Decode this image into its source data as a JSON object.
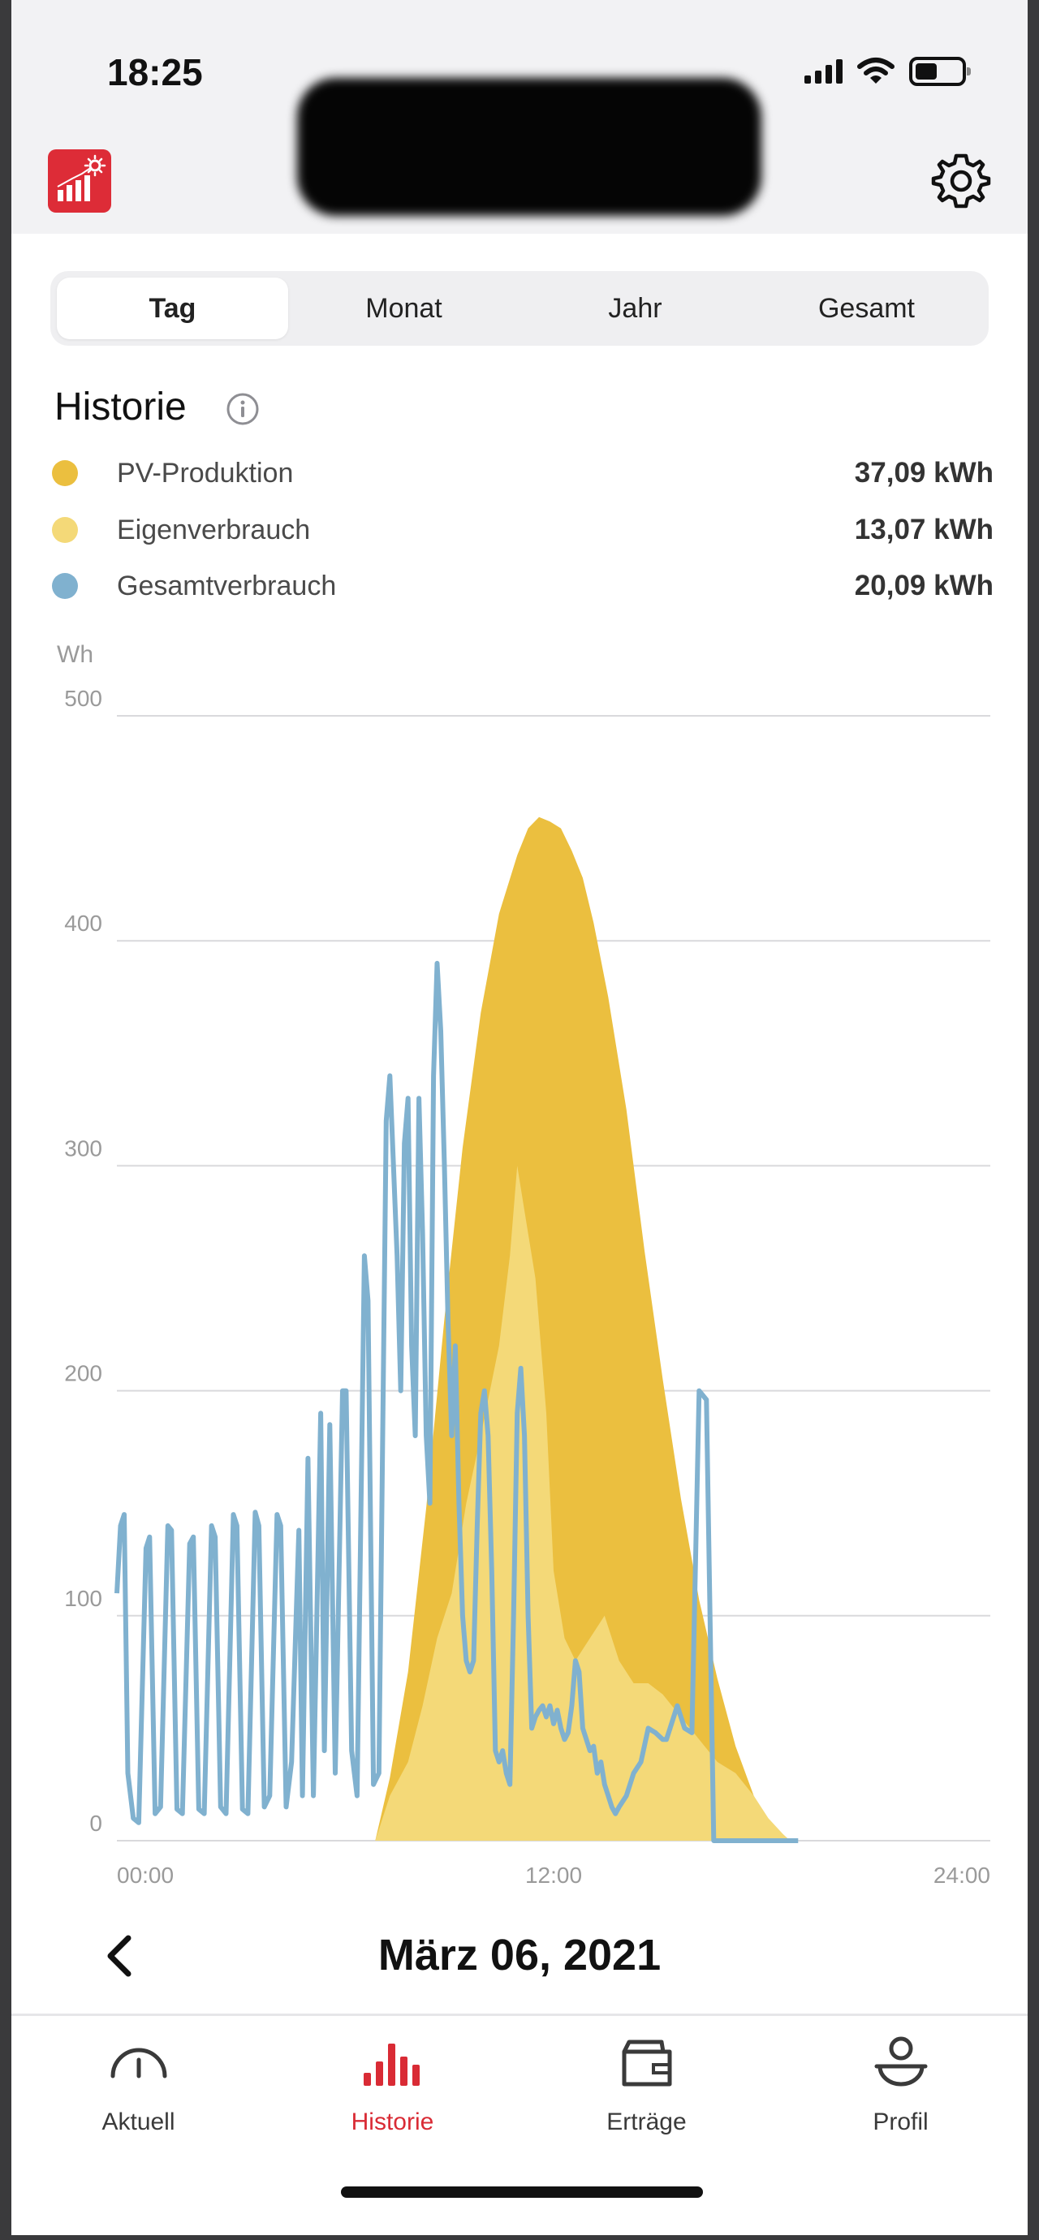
{
  "status_bar": {
    "time": "18:25",
    "icons": [
      "cellular-signal-icon",
      "wifi-icon",
      "battery-icon"
    ],
    "battery_level": 0.45
  },
  "header": {
    "logo_icon": "solar-chart-icon",
    "settings_icon": "gear-icon",
    "brand_color": "#dd2c37"
  },
  "period_tabs": [
    {
      "label": "Tag",
      "selected": true
    },
    {
      "label": "Monat",
      "selected": false
    },
    {
      "label": "Jahr",
      "selected": false
    },
    {
      "label": "Gesamt",
      "selected": false
    }
  ],
  "history": {
    "title": "Historie",
    "info_icon": "info-icon"
  },
  "legend": [
    {
      "label": "PV-Produktion",
      "value": "37,09 kWh",
      "color": "#ebbf3f"
    },
    {
      "label": "Eigenverbrauch",
      "value": "13,07 kWh",
      "color": "#f4d978"
    },
    {
      "label": "Gesamtverbrauch",
      "value": "20,09 kWh",
      "color": "#80b1cf"
    }
  ],
  "chart_data": {
    "type": "area",
    "ylabel": "Wh",
    "ylim": [
      0,
      500
    ],
    "yticks": [
      "0",
      "100",
      "200",
      "300",
      "400",
      "500"
    ],
    "xlim": [
      0,
      24
    ],
    "xticks": [
      "00:00",
      "12:00",
      "24:00"
    ],
    "grid": true,
    "series": [
      {
        "name": "PV-Produktion",
        "type": "area",
        "color": "#ebbf3f",
        "x": [
          0,
          7.1,
          7.5,
          8.0,
          8.5,
          9.0,
          9.5,
          10.0,
          10.5,
          11.0,
          11.3,
          11.6,
          11.9,
          12.2,
          12.5,
          12.8,
          13.1,
          13.5,
          14.0,
          14.5,
          15.0,
          15.5,
          16.0,
          16.5,
          17.0,
          17.5,
          17.9,
          18.3,
          18.5
        ],
        "values": [
          0,
          0,
          28,
          75,
          148,
          232,
          308,
          368,
          412,
          438,
          450,
          455,
          453,
          450,
          440,
          428,
          408,
          375,
          325,
          262,
          205,
          152,
          107,
          72,
          42,
          20,
          8,
          2,
          0
        ]
      },
      {
        "name": "Eigenverbrauch",
        "type": "area",
        "color": "#f4d978",
        "x": [
          0,
          7.1,
          7.5,
          8.0,
          8.4,
          8.8,
          9.2,
          9.6,
          10.0,
          10.5,
          10.8,
          11.0,
          11.2,
          11.5,
          11.8,
          12.0,
          12.3,
          12.6,
          13.0,
          13.4,
          13.8,
          14.2,
          14.6,
          15.0,
          15.5,
          16.0,
          16.5,
          17.0,
          17.5,
          17.9,
          18.3,
          18.5
        ],
        "values": [
          0,
          0,
          20,
          35,
          60,
          90,
          110,
          150,
          180,
          220,
          260,
          300,
          280,
          250,
          190,
          120,
          90,
          80,
          90,
          100,
          80,
          70,
          70,
          65,
          55,
          45,
          35,
          30,
          20,
          10,
          3,
          0
        ]
      },
      {
        "name": "Gesamtverbrauch",
        "type": "line",
        "color": "#80b1cf",
        "x": [
          0.0,
          0.1,
          0.2,
          0.3,
          0.45,
          0.6,
          0.8,
          0.9,
          1.05,
          1.2,
          1.4,
          1.5,
          1.65,
          1.8,
          2.0,
          2.1,
          2.25,
          2.4,
          2.6,
          2.7,
          2.85,
          3.0,
          3.2,
          3.3,
          3.45,
          3.6,
          3.8,
          3.9,
          4.05,
          4.2,
          4.4,
          4.5,
          4.65,
          4.8,
          5.0,
          5.1,
          5.25,
          5.4,
          5.6,
          5.7,
          5.85,
          6.0,
          6.2,
          6.3,
          6.45,
          6.6,
          6.8,
          6.9,
          7.05,
          7.2,
          7.4,
          7.5,
          7.7,
          7.8,
          7.9,
          8.0,
          8.1,
          8.2,
          8.3,
          8.4,
          8.5,
          8.6,
          8.7,
          8.8,
          8.9,
          9.0,
          9.1,
          9.2,
          9.3,
          9.4,
          9.5,
          9.6,
          9.7,
          9.8,
          9.9,
          10.0,
          10.1,
          10.2,
          10.3,
          10.4,
          10.5,
          10.6,
          10.7,
          10.8,
          10.9,
          11.0,
          11.1,
          11.2,
          11.3,
          11.4,
          11.5,
          11.6,
          11.7,
          11.8,
          11.9,
          12.0,
          12.1,
          12.2,
          12.3,
          12.4,
          12.5,
          12.6,
          12.7,
          12.8,
          12.9,
          13.0,
          13.1,
          13.2,
          13.3,
          13.4,
          13.5,
          13.6,
          13.7,
          13.8,
          14.0,
          14.2,
          14.4,
          14.6,
          14.8,
          15.0,
          15.1,
          15.2,
          15.4,
          15.6,
          15.8,
          16.0,
          16.2,
          16.4,
          16.6,
          16.8,
          17.0,
          17.2,
          17.4,
          17.5,
          17.6,
          17.8,
          18.0,
          18.2,
          18.3,
          18.4,
          18.5,
          18.6,
          18.65,
          18.7,
          18.72
        ],
        "values": [
          110,
          140,
          145,
          30,
          10,
          8,
          130,
          135,
          12,
          15,
          140,
          138,
          14,
          12,
          132,
          135,
          14,
          12,
          140,
          135,
          15,
          12,
          145,
          140,
          14,
          12,
          146,
          140,
          15,
          20,
          145,
          140,
          15,
          35,
          138,
          20,
          170,
          20,
          190,
          40,
          185,
          30,
          200,
          200,
          40,
          20,
          260,
          240,
          25,
          30,
          320,
          340,
          260,
          200,
          310,
          330,
          220,
          180,
          330,
          270,
          180,
          150,
          340,
          390,
          360,
          300,
          230,
          180,
          220,
          150,
          100,
          80,
          75,
          80,
          140,
          190,
          200,
          180,
          120,
          40,
          35,
          40,
          30,
          25,
          100,
          190,
          210,
          180,
          100,
          50,
          55,
          58,
          60,
          55,
          60,
          52,
          58,
          50,
          45,
          48,
          60,
          80,
          75,
          50,
          45,
          40,
          42,
          30,
          35,
          25,
          20,
          15,
          12,
          15,
          20,
          30,
          35,
          50,
          48,
          45,
          45,
          50,
          60,
          50,
          48,
          200,
          196,
          0,
          0,
          0,
          0,
          0,
          0,
          0,
          0,
          0,
          0,
          0,
          0,
          0,
          0,
          0,
          0,
          0,
          0
        ]
      }
    ]
  },
  "date_nav": {
    "back_icon": "chevron-left-icon",
    "date": "März 06, 2021"
  },
  "tab_bar": [
    {
      "label": "Aktuell",
      "icon": "gauge-icon",
      "active": false
    },
    {
      "label": "Historie",
      "icon": "bar-chart-icon",
      "active": true
    },
    {
      "label": "Erträge",
      "icon": "wallet-icon",
      "active": false
    },
    {
      "label": "Profil",
      "icon": "person-icon",
      "active": false
    }
  ]
}
